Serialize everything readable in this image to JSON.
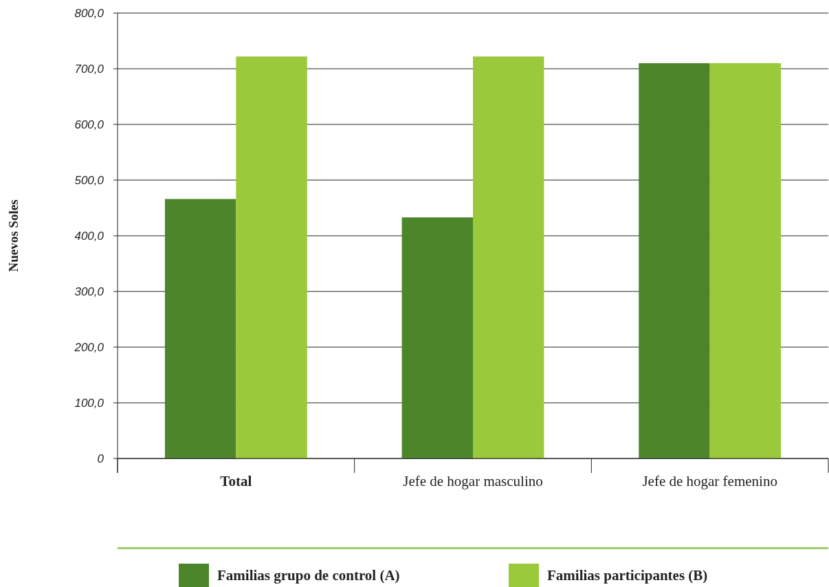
{
  "chart_data": {
    "type": "bar",
    "ylabel": "Nuevos Soles",
    "categories": [
      "Total",
      "Jefe de hogar masculino",
      "Jefe de hogar femenino"
    ],
    "series": [
      {
        "name": "Familias grupo de control (A)",
        "color": "#4d862a",
        "values": [
          466,
          433,
          710
        ]
      },
      {
        "name": "Familias participantes (B)",
        "color": "#9bc93c",
        "values": [
          722,
          722,
          710
        ]
      }
    ],
    "ylim": [
      0,
      800
    ],
    "yticks": [
      {
        "value": 0,
        "label": "0"
      },
      {
        "value": 100,
        "label": "100,0"
      },
      {
        "value": 200,
        "label": "200,0"
      },
      {
        "value": 300,
        "label": "300,0"
      },
      {
        "value": 400,
        "label": "400,0"
      },
      {
        "value": 500,
        "label": "500,0"
      },
      {
        "value": 600,
        "label": "600,0"
      },
      {
        "value": 700,
        "label": "700,0"
      },
      {
        "value": 800,
        "label": "800,0"
      }
    ],
    "grid": "y",
    "legend": "bottom"
  }
}
